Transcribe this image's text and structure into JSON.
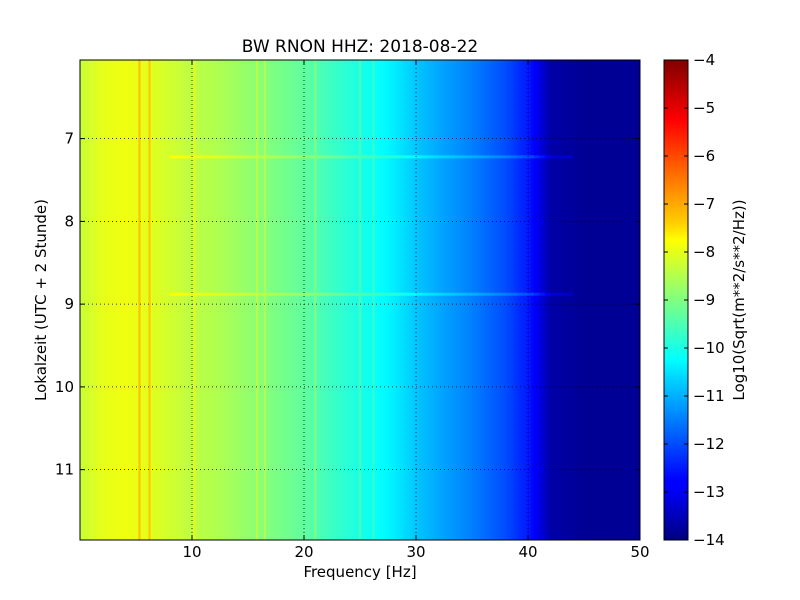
{
  "chart_data": {
    "type": "heatmap",
    "title": "BW RNON HHZ: 2018-08-22",
    "xlabel": "Frequency [Hz]",
    "ylabel": "Lokalzeit (UTC + 2 Stunde)",
    "xlim": [
      0,
      50
    ],
    "ylim": [
      6.05,
      11.85
    ],
    "y_inverted": true,
    "x_ticks": [
      10,
      20,
      30,
      40,
      50
    ],
    "y_ticks": [
      7,
      8,
      9,
      10,
      11
    ],
    "grid": true,
    "colormap": "jet",
    "colorbar": {
      "label": "Log10(Sqrt(m**2/s**2/Hz))",
      "range": [
        -14,
        -4
      ],
      "ticks": [
        -4,
        -5,
        -6,
        -7,
        -8,
        -9,
        -10,
        -11,
        -12,
        -13,
        -14
      ]
    },
    "spectrum_profile": {
      "frequency_hz": [
        0,
        2,
        4,
        6,
        8,
        10,
        12,
        15,
        18,
        20,
        22,
        25,
        28,
        30,
        32,
        35,
        38,
        40,
        41,
        42,
        45,
        50
      ],
      "log10_amplitude": [
        -8.3,
        -8.0,
        -7.9,
        -8.0,
        -8.2,
        -8.4,
        -8.5,
        -8.8,
        -9.1,
        -9.3,
        -9.6,
        -10.0,
        -10.4,
        -10.8,
        -11.1,
        -11.5,
        -12.0,
        -12.5,
        -13.0,
        -13.6,
        -13.8,
        -13.8
      ]
    },
    "spectral_lines_hz": [
      5.3,
      6.2,
      10.2,
      15.8,
      16.5,
      21.0,
      25.0,
      26.2
    ],
    "broadband_events_hours": [
      7.22,
      8.88
    ]
  }
}
